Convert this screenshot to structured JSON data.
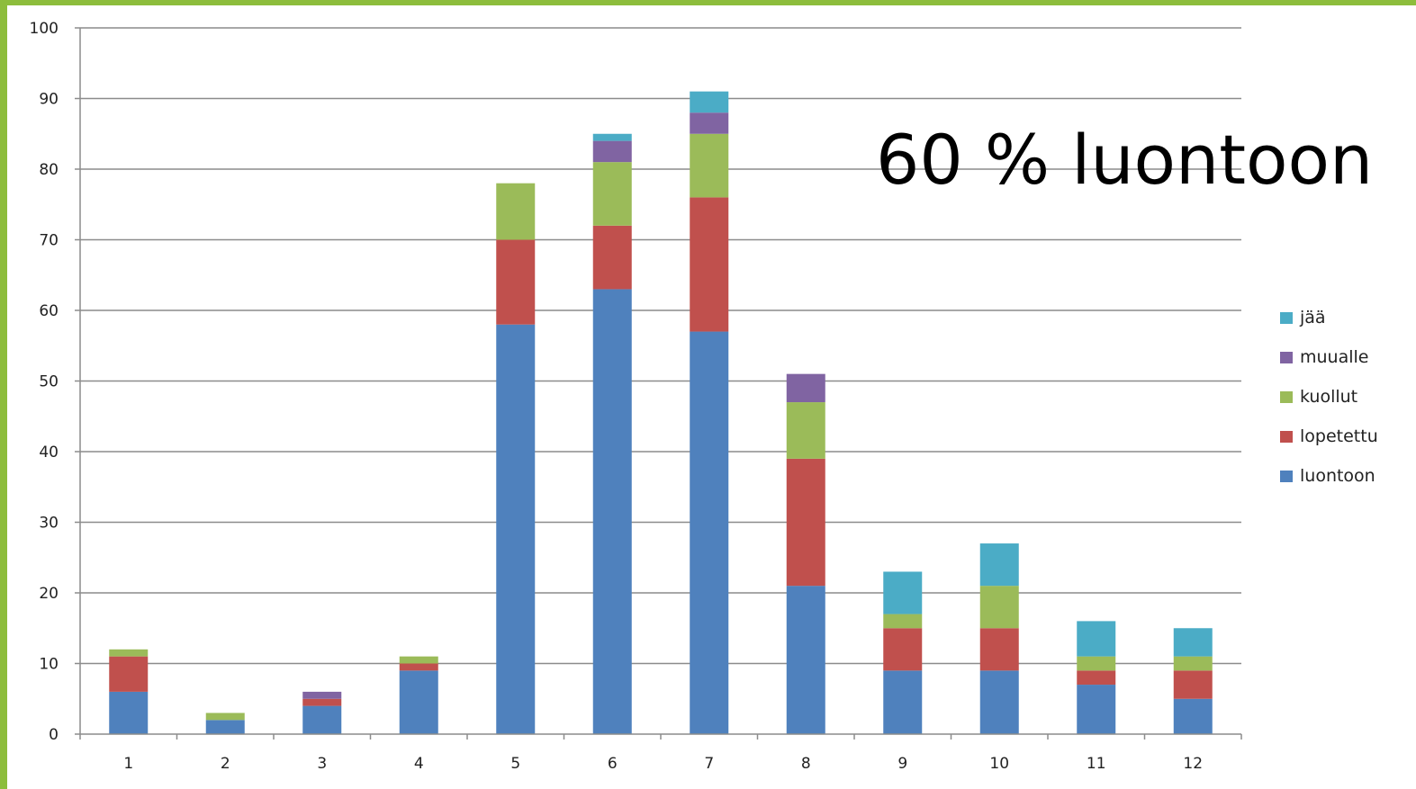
{
  "annotation": "60 % luontoon",
  "chart_data": {
    "type": "bar",
    "stacked": true,
    "title": "",
    "xlabel": "",
    "ylabel": "",
    "ylim": [
      0,
      100
    ],
    "yticks": [
      0,
      10,
      20,
      30,
      40,
      50,
      60,
      70,
      80,
      90,
      100
    ],
    "grid": true,
    "legend_position": "right",
    "categories": [
      "1",
      "2",
      "3",
      "4",
      "5",
      "6",
      "7",
      "8",
      "9",
      "10",
      "11",
      "12"
    ],
    "series": [
      {
        "name": "luontoon",
        "color": "#4f81bd",
        "values": [
          6,
          2,
          4,
          9,
          58,
          63,
          57,
          21,
          9,
          9,
          7,
          5
        ]
      },
      {
        "name": "lopetettu",
        "color": "#c0504d",
        "values": [
          5,
          0,
          1,
          1,
          12,
          9,
          19,
          18,
          6,
          6,
          2,
          4
        ]
      },
      {
        "name": "kuollut",
        "color": "#9bbb59",
        "values": [
          1,
          1,
          0,
          1,
          8,
          9,
          9,
          8,
          2,
          6,
          2,
          2
        ]
      },
      {
        "name": "muualle",
        "color": "#8064a2",
        "values": [
          0,
          0,
          1,
          0,
          0,
          3,
          3,
          4,
          0,
          0,
          0,
          0
        ]
      },
      {
        "name": "jää",
        "color": "#4bacc6",
        "values": [
          0,
          0,
          0,
          0,
          0,
          1,
          3,
          0,
          6,
          6,
          5,
          4
        ]
      }
    ]
  }
}
